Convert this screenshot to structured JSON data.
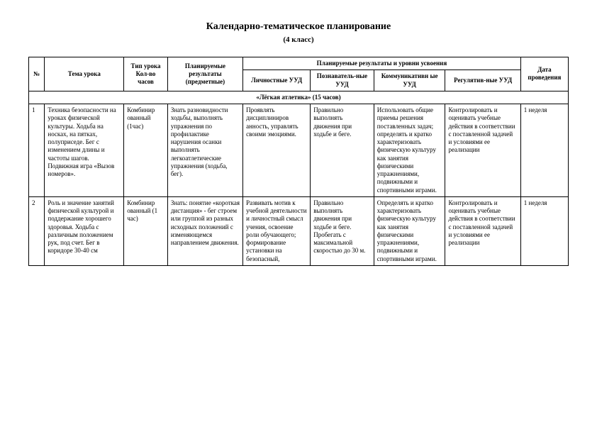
{
  "title": "Календарно-тематическое планирование",
  "subtitle": "(4 класс)",
  "headers": {
    "num": "№",
    "topic": "Тема урока",
    "type": "Тип урока Кол-во часов",
    "results_subject": "Планируемые результаты (предметные)",
    "results_levels": "Планируемые результаты и уровни усвоения",
    "personal": "Личностные УУД",
    "cognitive": "Познаватель-ные  УУД",
    "communicative": "Коммуникативн ые УУД",
    "regulatory": "Регулятив-ные   УУД",
    "date": "Дата проведения"
  },
  "section": "«Лёгкая атлетика» (15 часов)",
  "rows": [
    {
      "num": "1",
      "topic": "Техника безопасности на уроках физической культуры. Ходьба на носках, на пятках, полуприседе.  Бег с изменением длины и частоты шагов. Подвижная игра «Вызов номеров».",
      "type": "Комбинир ованный (1час)",
      "subject": "Знать разновидности ходьбы, выполнять упражнения по профилактике нарушения осанки выполнять легкоатлетические упражнения (ходьба, бег).",
      "personal": "Проявлять дисциплиниров анность, управлять своими эмоциями.",
      "cognitive": "Правильно выполнять движения при ходьбе и беге.",
      "communicative": "Использовать общие приемы решения поставленных задач; определять и кратко характеризовать физическую культуру как занятия физическими упражнениями, подвижными и спортивными играми.",
      "regulatory": "Контролировать  и оценивать учебные действия в соответствии с поставленной задачей и условиями ее реализации",
      "date": "1 неделя"
    },
    {
      "num": "2",
      "topic": "Роль и значение занятий физической культурой и поддержание хорошего здоровья. Ходьба с различным положением рук, под счет. Бег в коридоре 30-40 см",
      "type": "Комбинир ованный (1 час)",
      "subject": "Знать: понятие «короткая дистанция» - бег строем или группой из разных исходных положений с изменяющемся направлением движения.",
      "personal": "Развивать мотив к учебной деятельности и личностный смысл учения, освоение роли обучающего; формирование установки на безопасный,",
      "cognitive": "Правильно выполнять движения при ходьбе и беге. Пробегать с максимальной скоростью до 30 м.",
      "communicative": "Определять  и кратко характеризовать физическую культуру как занятия физическими упражнениями, подвижными и спортивными играми.",
      "regulatory": "Контролировать  и оценивать учебные действия в соответствии с поставленной задачей и условиями ее реализации",
      "date": "1 неделя"
    }
  ]
}
